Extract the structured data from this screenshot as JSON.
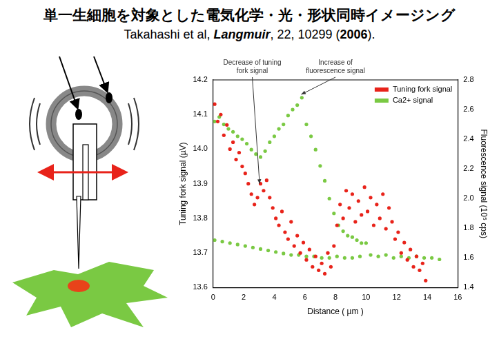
{
  "header": {
    "title": "単一生細胞を対象とした電気化学・光・形状同時イメージング",
    "citation": [
      "Takahashi et al,  ",
      "Langmuir",
      ", 22, 10299 (",
      "2006",
      ")."
    ]
  },
  "chart_data": {
    "type": "scatter",
    "x_label": "Distance ( µm )",
    "y_label": "Tuning fork signal (µV)",
    "y2_label": "Fluorescence signal (10⁵ cps)",
    "xlim": [
      0,
      16
    ],
    "xticks": [
      0,
      2,
      4,
      6,
      8,
      10,
      12,
      14,
      16
    ],
    "ylim": [
      13.6,
      14.2
    ],
    "yticks": [
      13.6,
      13.7,
      13.8,
      13.9,
      {
        "value": 14,
        "label": "14.0"
      },
      14.1,
      14.2
    ],
    "y2lim": [
      1.4,
      2.8
    ],
    "y2ticks": [
      1.4,
      1.6,
      1.8,
      {
        "value": 2,
        "label": "2.0"
      },
      2.2,
      2.4,
      2.6,
      2.8
    ],
    "grid": false,
    "legend": "upper right",
    "annotations": [
      "Decrease of tuning fork signal",
      "Increase of fluorescence signal"
    ],
    "series": [
      {
        "name": "Tuning fork signal",
        "color": "#e8231a",
        "marker": "circle",
        "axis": "y",
        "x": [
          0.1,
          0.3,
          0.5,
          0.7,
          0.9,
          1.1,
          1.3,
          1.5,
          1.7,
          1.9,
          2.1,
          2.3,
          2.5,
          2.7,
          2.9,
          3.1,
          3.3,
          3.5,
          3.7,
          3.9,
          4.1,
          4.3,
          4.5,
          4.7,
          4.9,
          5.1,
          5.3,
          5.5,
          5.7,
          5.9,
          6.1,
          6.3,
          6.5,
          6.7,
          6.9,
          7.1,
          7.3,
          7.5,
          7.7,
          7.9,
          8.1,
          8.3,
          8.5,
          8.7,
          8.9,
          9.1,
          9.3,
          9.5,
          9.7,
          9.9,
          10.1,
          10.3,
          10.5,
          10.7,
          10.9,
          11.1,
          11.3,
          11.5,
          11.7,
          11.9,
          12.1,
          12.3,
          12.5,
          12.7,
          12.9,
          13.1,
          13.3,
          13.5,
          13.7,
          13.9
        ],
        "values": [
          14.13,
          14.08,
          14.1,
          14.04,
          14.07,
          14.0,
          14.02,
          13.97,
          13.99,
          13.95,
          13.93,
          13.9,
          13.87,
          13.84,
          13.86,
          13.9,
          13.88,
          13.91,
          13.86,
          13.83,
          13.8,
          13.78,
          13.82,
          13.76,
          13.74,
          13.79,
          13.72,
          13.75,
          13.7,
          13.73,
          13.68,
          13.71,
          13.66,
          13.69,
          13.65,
          13.67,
          13.64,
          13.7,
          13.66,
          13.72,
          13.78,
          13.84,
          13.8,
          13.88,
          13.83,
          13.87,
          13.79,
          13.85,
          13.81,
          13.89,
          13.82,
          13.86,
          13.78,
          13.84,
          13.8,
          13.87,
          13.77,
          13.83,
          13.79,
          13.74,
          13.76,
          13.7,
          13.73,
          13.68,
          13.71,
          13.66,
          13.69,
          13.65,
          13.67,
          13.62
        ]
      },
      {
        "name": "Ca2+ signal",
        "color": "#7ac943",
        "marker": "circle",
        "axis": "y2",
        "x": [
          0.1,
          0.4,
          0.7,
          1.0,
          1.3,
          1.6,
          1.9,
          2.2,
          2.5,
          2.8,
          3.1,
          3.4,
          3.7,
          4.0,
          4.3,
          4.6,
          4.9,
          5.2,
          5.5,
          5.8,
          6.1,
          6.4,
          6.7,
          7.0,
          7.3,
          7.6,
          7.9,
          8.2,
          8.5,
          8.8,
          9.1,
          9.4,
          9.7,
          10.0,
          0.1,
          0.6,
          1.1,
          1.6,
          2.1,
          2.6,
          3.1,
          3.6,
          4.1,
          4.6,
          5.1,
          5.6,
          6.1,
          6.6,
          7.1,
          7.6,
          8.1,
          8.6,
          9.1,
          9.6,
          10.3,
          10.8,
          11.3,
          11.8,
          12.3,
          12.8,
          13.3,
          13.8,
          14.3,
          14.8
        ],
        "values": [
          2.52,
          2.55,
          2.5,
          2.47,
          2.45,
          2.42,
          2.4,
          2.37,
          2.33,
          2.3,
          2.28,
          2.32,
          2.38,
          2.42,
          2.47,
          2.5,
          2.56,
          2.6,
          2.63,
          2.68,
          2.5,
          2.42,
          2.33,
          2.22,
          2.12,
          2.0,
          1.9,
          1.82,
          1.78,
          1.75,
          1.74,
          1.72,
          1.7,
          1.7,
          1.72,
          1.71,
          1.7,
          1.69,
          1.68,
          1.67,
          1.66,
          1.65,
          1.64,
          1.63,
          1.62,
          1.62,
          1.61,
          1.61,
          1.6,
          1.6,
          1.61,
          1.6,
          1.6,
          1.61,
          1.62,
          1.61,
          1.62,
          1.6,
          1.61,
          1.6,
          1.61,
          1.6,
          1.6,
          1.59
        ]
      }
    ]
  }
}
